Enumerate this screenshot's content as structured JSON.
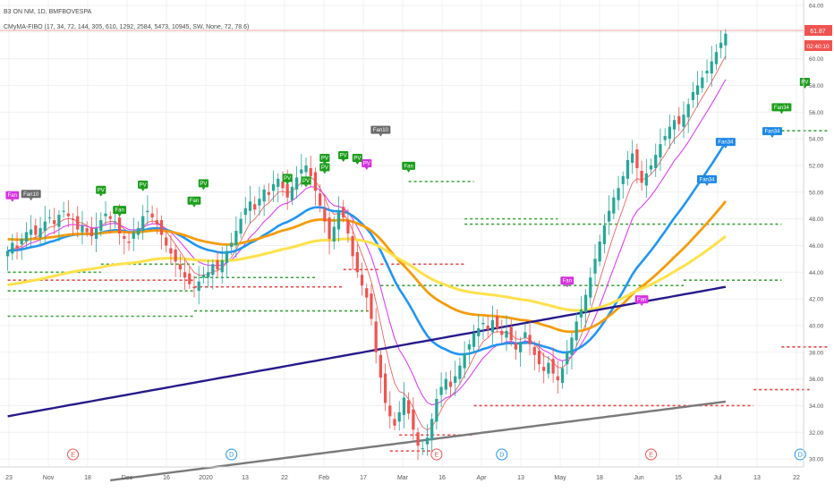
{
  "header": {
    "symbol_line": "B3 ON NM, 1D, BMFBOVESPA",
    "indicator_line": "CMyMA-FIBO (17, 34, 72, 144, 305, 610, 1292, 2584, 5473, 10945, SW, None, 72, 78.6)"
  },
  "price_badge": {
    "value": "61.87",
    "timer": "02:40:10",
    "color": "#ef5350"
  },
  "chart_data": {
    "type": "line",
    "title": "",
    "ylim": [
      29,
      64
    ],
    "y_ticks": [
      "64.00",
      "62.00",
      "60.00",
      "58.00",
      "56.00",
      "54.00",
      "52.00",
      "50.00",
      "48.00",
      "46.00",
      "44.00",
      "42.00",
      "40.00",
      "38.00",
      "36.00",
      "34.00",
      "32.00",
      "30.00"
    ],
    "x_ticks": [
      "23",
      "Nov",
      "18",
      "Dec",
      "16",
      "2020",
      "13",
      "22",
      "Feb",
      "17",
      "Mar",
      "16",
      "Apr",
      "13",
      "May",
      "18",
      "Jun",
      "15",
      "Jul",
      "13",
      "22"
    ],
    "closes": [
      45.6,
      46.2,
      45.8,
      46.5,
      47.0,
      47.2,
      46.8,
      47.3,
      47.8,
      48.1,
      47.6,
      48.3,
      48.6,
      48.2,
      47.9,
      47.2,
      47.5,
      47.0,
      46.7,
      47.3,
      47.9,
      48.4,
      48.0,
      47.8,
      46.9,
      46.5,
      46.2,
      47.0,
      47.3,
      48.2,
      48.6,
      48.1,
      47.6,
      46.8,
      46.0,
      45.4,
      44.8,
      44.2,
      43.6,
      43.1,
      42.8,
      43.3,
      43.8,
      44.0,
      44.6,
      44.2,
      44.9,
      45.6,
      46.2,
      47.1,
      48.0,
      48.8,
      49.3,
      48.7,
      49.5,
      50.2,
      49.8,
      50.6,
      51.0,
      50.3,
      49.6,
      50.4,
      51.1,
      51.7,
      52.0,
      51.2,
      50.1,
      49.0,
      47.8,
      46.5,
      47.4,
      48.6,
      48.1,
      46.9,
      45.2,
      44.0,
      43.0,
      42.1,
      40.5,
      38.0,
      36.1,
      34.2,
      33.2,
      32.5,
      33.5,
      34.6,
      33.4,
      32.2,
      31.0,
      30.8,
      31.6,
      33.0,
      34.5,
      35.4,
      36.0,
      35.4,
      36.2,
      37.0,
      37.9,
      38.6,
      39.4,
      39.8,
      40.2,
      39.7,
      40.4,
      39.8,
      39.3,
      39.6,
      38.9,
      38.2,
      38.8,
      39.5,
      38.6,
      37.8,
      37.1,
      36.6,
      37.2,
      36.4,
      35.9,
      36.8,
      38.0,
      39.1,
      40.3,
      41.2,
      42.3,
      43.6,
      45.0,
      46.3,
      47.5,
      48.6,
      49.6,
      50.3,
      51.2,
      52.4,
      52.9,
      51.8,
      50.7,
      51.4,
      52.0,
      52.8,
      53.6,
      54.2,
      54.9,
      55.4,
      55.1,
      55.8,
      56.6,
      57.5,
      58.0,
      58.6,
      59.1,
      59.8,
      60.5,
      61.2,
      61.87
    ],
    "series": [],
    "annotations": [
      {
        "text": "Fan",
        "i": 1,
        "y": 49.4,
        "kind": "magenta"
      },
      {
        "text": "Fan10",
        "i": 5,
        "y": 49.5,
        "kind": "gray"
      },
      {
        "text": "PV",
        "i": 20,
        "y": 49.8,
        "kind": "green"
      },
      {
        "text": "PV",
        "i": 29,
        "y": 50.2,
        "kind": "green"
      },
      {
        "text": "Fan",
        "i": 24,
        "y": 48.3,
        "kind": "green"
      },
      {
        "text": "Fan",
        "i": 40,
        "y": 49.0,
        "kind": "green"
      },
      {
        "text": "PV",
        "i": 42,
        "y": 50.3,
        "kind": "green"
      },
      {
        "text": "PV",
        "i": 60,
        "y": 50.7,
        "kind": "green"
      },
      {
        "text": "PV",
        "i": 64,
        "y": 50.5,
        "kind": "green"
      },
      {
        "text": "PV",
        "i": 68,
        "y": 51.5,
        "kind": "green"
      },
      {
        "text": "PV",
        "i": 72,
        "y": 52.4,
        "kind": "green"
      },
      {
        "text": "PV",
        "i": 75,
        "y": 52.2,
        "kind": "green"
      },
      {
        "text": "PV",
        "i": 68,
        "y": 52.2,
        "kind": "green"
      },
      {
        "text": "Fan10",
        "i": 80,
        "y": 54.3,
        "kind": "gray"
      },
      {
        "text": "PV",
        "i": 77,
        "y": 51.8,
        "kind": "magenta"
      },
      {
        "text": "Fan",
        "i": 86,
        "y": 51.6,
        "kind": "green"
      },
      {
        "text": "Fan",
        "i": 120,
        "y": 43.0,
        "kind": "magenta"
      },
      {
        "text": "Fan",
        "i": 136,
        "y": 41.6,
        "kind": "magenta"
      },
      {
        "text": "Fan34",
        "i": 150,
        "y": 50.6,
        "kind": "blue"
      },
      {
        "text": "Fan34",
        "i": 154,
        "y": 53.4,
        "kind": "blue"
      },
      {
        "text": "Fan34",
        "i": 164,
        "y": 54.2,
        "kind": "blue"
      },
      {
        "text": "Fan34",
        "i": 166,
        "y": 56.0,
        "kind": "green"
      },
      {
        "text": "PV",
        "i": 171,
        "y": 57.9,
        "kind": "green"
      }
    ],
    "events": [
      {
        "text": "E",
        "i": 14
      },
      {
        "text": "D",
        "i": 48
      },
      {
        "text": "E",
        "i": 92
      },
      {
        "text": "D",
        "i": 106
      },
      {
        "text": "E",
        "i": 138
      },
      {
        "text": "D",
        "i": 170
      }
    ]
  },
  "colors": {
    "ma_blue": "#2196f3",
    "ma_orange": "#f59c0b",
    "ma_yellow": "#ffe14b",
    "ma_navy": "#271a8a",
    "ma_gray": "#7a7a7a",
    "ma_magenta": "#e040fb",
    "ma_red": "#f26262",
    "fibo_green": "#3aa53a",
    "fibo_red": "#ef4444",
    "bull": "#26a69a",
    "bear": "#ef5350"
  }
}
